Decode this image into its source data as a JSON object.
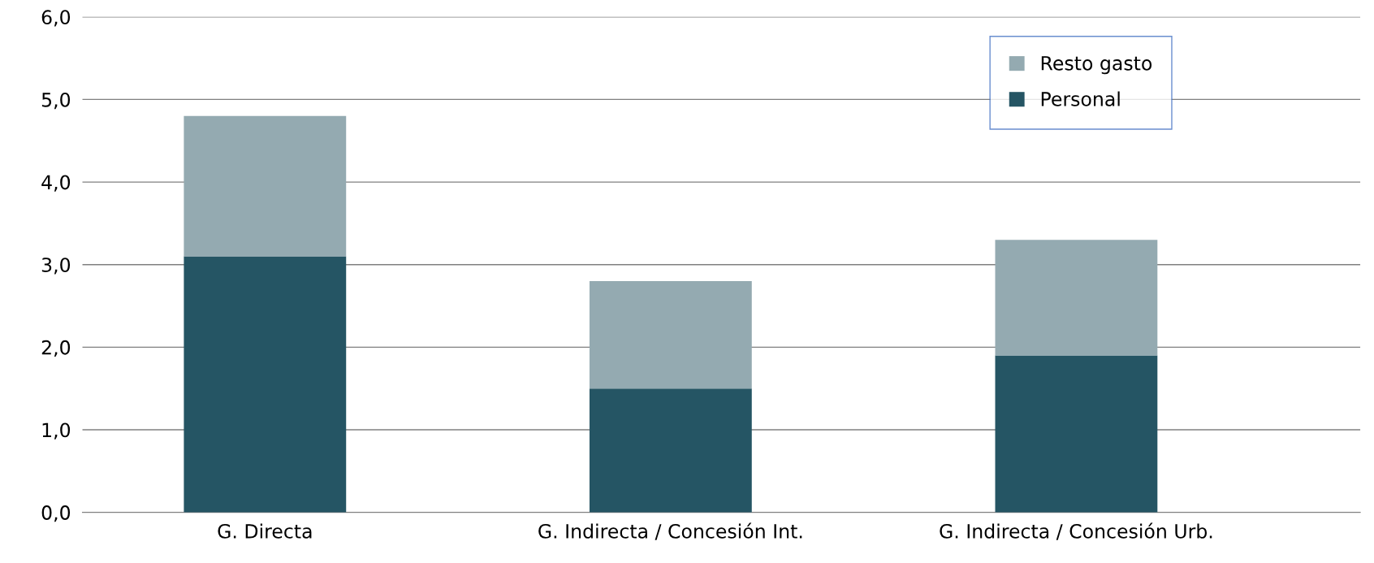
{
  "chart_data": {
    "type": "bar",
    "stacked": true,
    "categories": [
      "G. Directa",
      "G. Indirecta / Concesión Int.",
      "G. Indirecta / Concesión Urb."
    ],
    "series": [
      {
        "name": "Personal",
        "color": "#255564",
        "values": [
          3.1,
          1.5,
          1.9
        ]
      },
      {
        "name": "Resto gasto",
        "color": "#94aab1",
        "values": [
          1.7,
          1.3,
          1.4
        ]
      }
    ],
    "ylim": [
      0,
      6
    ],
    "yticks": [
      {
        "value": 0,
        "label": "0,0"
      },
      {
        "value": 1,
        "label": "1,0"
      },
      {
        "value": 2,
        "label": "2,0"
      },
      {
        "value": 3,
        "label": "3,0"
      },
      {
        "value": 4,
        "label": "4,0"
      },
      {
        "value": 5,
        "label": "5,0"
      },
      {
        "value": 6,
        "label": "6,0"
      }
    ],
    "grid": "y",
    "legend": "top right"
  }
}
